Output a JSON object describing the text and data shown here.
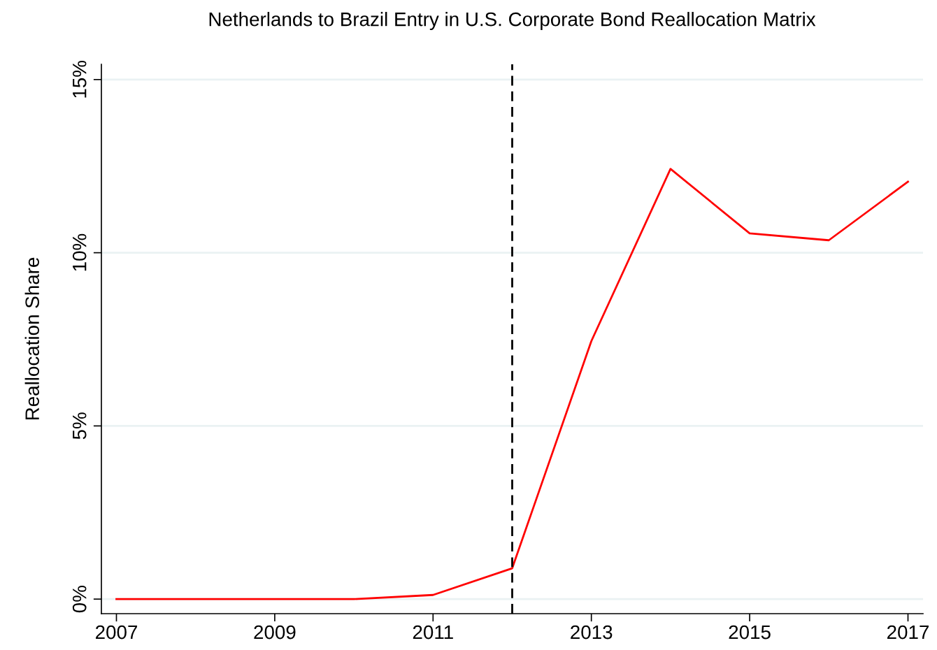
{
  "chart_data": {
    "type": "line",
    "title": "Netherlands to Brazil Entry in U.S. Corporate Bond Reallocation Matrix",
    "ylabel": "Reallocation Share",
    "x": [
      2007,
      2008,
      2009,
      2010,
      2011,
      2012,
      2013,
      2014,
      2015,
      2016,
      2017
    ],
    "series": [
      {
        "color": "#ff0000",
        "values": [
          0,
          0,
          0,
          0,
          0.12,
          0.89,
          7.45,
          12.42,
          10.56,
          10.36,
          12.05
        ]
      }
    ],
    "xlim": [
      2006.81,
      2017.19
    ],
    "xticks": [
      2007,
      2009,
      2011,
      2013,
      2015,
      2017
    ],
    "ylim": [
      -0.42,
      15.44
    ],
    "yticks": [
      {
        "value": 0,
        "label": "0%"
      },
      {
        "value": 5,
        "label": "5%"
      },
      {
        "value": 10,
        "label": "10%"
      },
      {
        "value": 15,
        "label": "15%"
      }
    ],
    "grid": "y",
    "legend": false,
    "marker": "none",
    "line_style": "solid",
    "ref_lines": [
      {
        "axis": "x",
        "value": 2012,
        "color": "#000000",
        "line_style": "dashed"
      }
    ]
  }
}
